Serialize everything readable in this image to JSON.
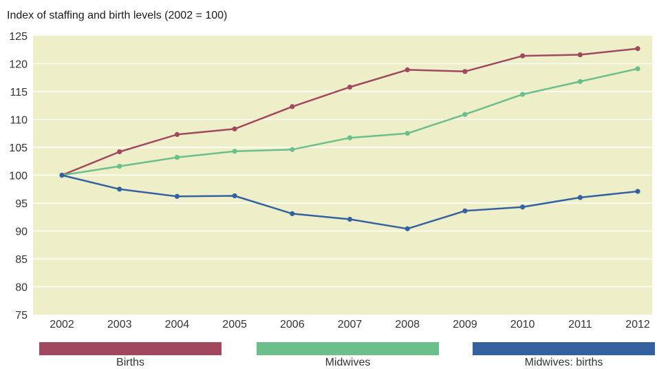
{
  "title": "Index of staffing and birth levels (2002 = 100)",
  "colors": {
    "plot_bg": "#eeeec8",
    "grid": "#ffffff",
    "births": "#a0485e",
    "midwives": "#6cbf8a",
    "ratio": "#3561a1"
  },
  "chart_data": {
    "type": "line",
    "title": "Index of staffing and birth levels (2002 = 100)",
    "xlabel": "",
    "ylabel": "",
    "x": [
      "2002",
      "2003",
      "2004",
      "2005",
      "2006",
      "2007",
      "2008",
      "2009",
      "2010",
      "2011",
      "2012"
    ],
    "ylim": [
      75,
      125
    ],
    "yticks": [
      75,
      80,
      85,
      90,
      95,
      100,
      105,
      110,
      115,
      120,
      125
    ],
    "grid": true,
    "legend_placement": "bottom",
    "series": [
      {
        "name": "Births",
        "color": "#a0485e",
        "values": [
          100,
          104.2,
          107.3,
          108.3,
          112.3,
          115.8,
          118.9,
          118.6,
          121.4,
          121.6,
          122.7
        ]
      },
      {
        "name": "Midwives",
        "color": "#6cbf8a",
        "values": [
          100,
          101.6,
          103.2,
          104.3,
          104.6,
          106.7,
          107.5,
          110.9,
          114.5,
          116.8,
          119.1
        ]
      },
      {
        "name": "Midwives: births",
        "color": "#3561a1",
        "values": [
          100,
          97.5,
          96.2,
          96.3,
          93.1,
          92.1,
          90.4,
          93.6,
          94.3,
          96.0,
          97.1
        ]
      }
    ]
  },
  "legend": [
    {
      "label": "Births",
      "color": "#a0485e"
    },
    {
      "label": "Midwives",
      "color": "#6cbf8a"
    },
    {
      "label": "Midwives: births",
      "color": "#3561a1"
    }
  ]
}
